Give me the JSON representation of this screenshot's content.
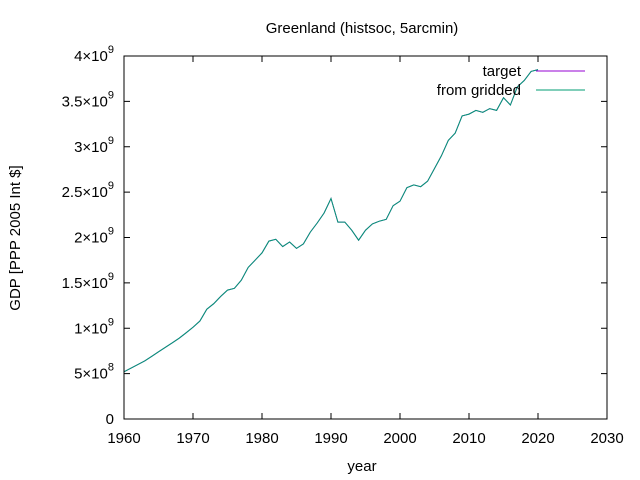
{
  "chart_data": {
    "type": "line",
    "title": "Greenland (histsoc, 5arcmin)",
    "xlabel": "year",
    "ylabel": "GDP [PPP 2005 Int $]",
    "xlim": [
      1960,
      2030
    ],
    "ylim": [
      0,
      4000000000
    ],
    "x_ticks": [
      1960,
      1970,
      1980,
      1990,
      2000,
      2010,
      2020,
      2030
    ],
    "x_tick_labels": [
      "1960",
      "1970",
      "1980",
      "1990",
      "2000",
      "2010",
      "2020",
      "2030"
    ],
    "y_ticks": [
      {
        "value": 0,
        "mantissa": "0",
        "exponent": ""
      },
      {
        "value": 500000000,
        "mantissa": "5×10",
        "exponent": "8"
      },
      {
        "value": 1000000000,
        "mantissa": "1×10",
        "exponent": "9"
      },
      {
        "value": 1500000000,
        "mantissa": "1.5×10",
        "exponent": "9"
      },
      {
        "value": 2000000000,
        "mantissa": "2×10",
        "exponent": "9"
      },
      {
        "value": 2500000000,
        "mantissa": "2.5×10",
        "exponent": "9"
      },
      {
        "value": 3000000000,
        "mantissa": "3×10",
        "exponent": "9"
      },
      {
        "value": 3500000000,
        "mantissa": "3.5×10",
        "exponent": "9"
      },
      {
        "value": 4000000000,
        "mantissa": "4×10",
        "exponent": "9"
      }
    ],
    "grid": false,
    "legend_position": "top-right",
    "x": [
      1960,
      1961,
      1962,
      1963,
      1964,
      1965,
      1966,
      1967,
      1968,
      1969,
      1970,
      1971,
      1972,
      1973,
      1974,
      1975,
      1976,
      1977,
      1978,
      1979,
      1980,
      1981,
      1982,
      1983,
      1984,
      1985,
      1986,
      1987,
      1988,
      1989,
      1990,
      1991,
      1992,
      1993,
      1994,
      1995,
      1996,
      1997,
      1998,
      1999,
      2000,
      2001,
      2002,
      2003,
      2004,
      2005,
      2006,
      2007,
      2008,
      2009,
      2010,
      2011,
      2012,
      2013,
      2014,
      2015,
      2016,
      2017,
      2018,
      2019,
      2020
    ],
    "series": [
      {
        "name": "target",
        "color": "#9400d3",
        "values": [
          520000000,
          560000000,
          600000000,
          640000000,
          690000000,
          740000000,
          790000000,
          840000000,
          890000000,
          950000000,
          1010000000,
          1080000000,
          1210000000,
          1270000000,
          1350000000,
          1420000000,
          1440000000,
          1530000000,
          1670000000,
          1750000000,
          1830000000,
          1960000000,
          1980000000,
          1900000000,
          1950000000,
          1880000000,
          1930000000,
          2060000000,
          2160000000,
          2270000000,
          2430000000,
          2170000000,
          2170000000,
          2080000000,
          1970000000,
          2080000000,
          2150000000,
          2180000000,
          2200000000,
          2350000000,
          2400000000,
          2550000000,
          2580000000,
          2560000000,
          2620000000,
          2760000000,
          2900000000,
          3070000000,
          3150000000,
          3340000000,
          3360000000,
          3400000000,
          3380000000,
          3420000000,
          3400000000,
          3540000000,
          3460000000,
          3660000000,
          3730000000,
          3830000000,
          3850000000
        ]
      },
      {
        "name": "from gridded",
        "color": "#009e73",
        "values": [
          520000000,
          560000000,
          600000000,
          640000000,
          690000000,
          740000000,
          790000000,
          840000000,
          890000000,
          950000000,
          1010000000,
          1080000000,
          1210000000,
          1270000000,
          1350000000,
          1420000000,
          1440000000,
          1530000000,
          1670000000,
          1750000000,
          1830000000,
          1960000000,
          1980000000,
          1900000000,
          1950000000,
          1880000000,
          1930000000,
          2060000000,
          2160000000,
          2270000000,
          2430000000,
          2170000000,
          2170000000,
          2080000000,
          1970000000,
          2080000000,
          2150000000,
          2180000000,
          2200000000,
          2350000000,
          2400000000,
          2550000000,
          2580000000,
          2560000000,
          2620000000,
          2760000000,
          2900000000,
          3070000000,
          3150000000,
          3340000000,
          3360000000,
          3400000000,
          3380000000,
          3420000000,
          3400000000,
          3540000000,
          3460000000,
          3660000000,
          3730000000,
          3830000000,
          3850000000
        ]
      }
    ]
  }
}
